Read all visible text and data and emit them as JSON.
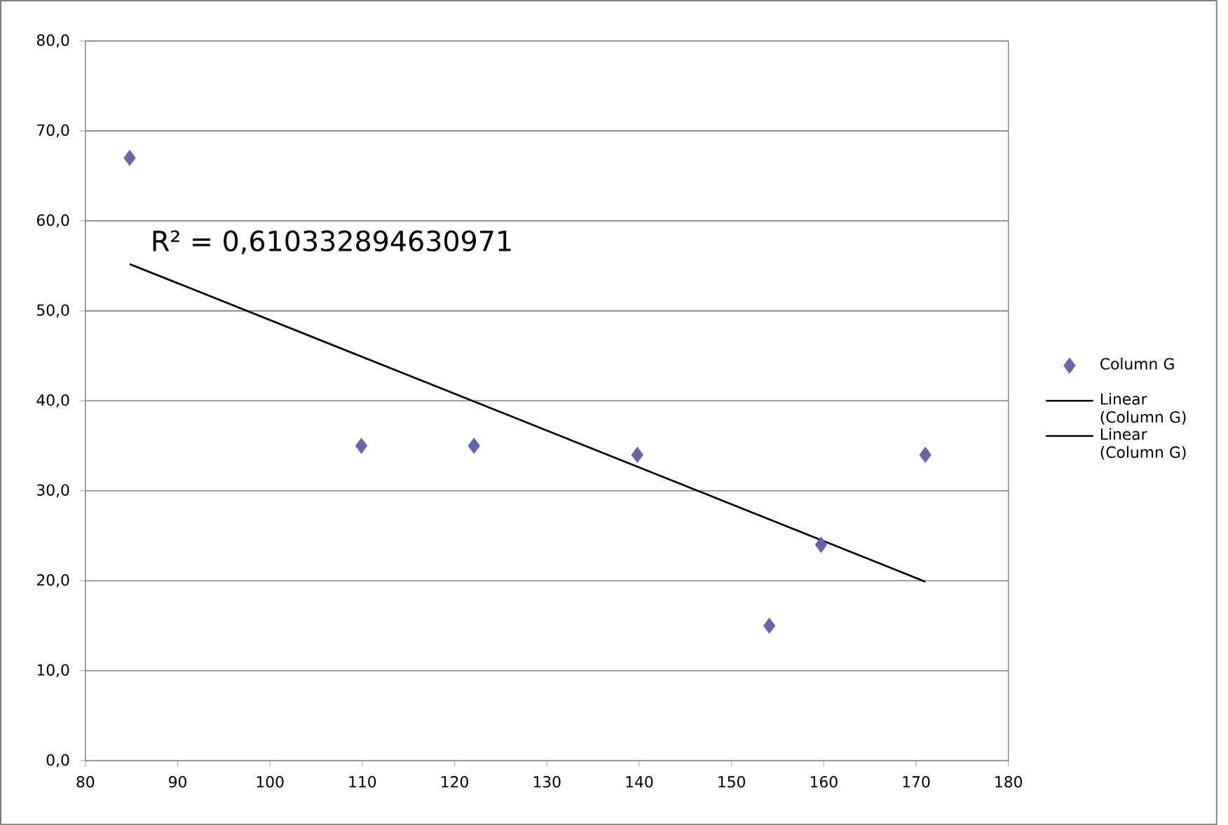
{
  "chart_data": {
    "type": "scatter",
    "annotations": [
      "R² = 0,610332894630971"
    ],
    "series": [
      {
        "name": "Column G",
        "color": "#6666aa",
        "marker": "diamond",
        "x": [
          84.8,
          109.9,
          122.1,
          139.8,
          154.1,
          159.7,
          171.0
        ],
        "values": [
          67,
          35,
          35,
          34,
          15,
          24,
          34
        ]
      },
      {
        "name": "Linear (Column G)",
        "type": "line",
        "color": "#000000",
        "marker": "none",
        "x": [
          84.8,
          171.0
        ],
        "values": [
          55.2,
          19.9
        ]
      },
      {
        "name": "Linear (Column G)",
        "type": "line",
        "color": "#000000",
        "marker": "none",
        "x": [
          84.8,
          171.0
        ],
        "values": [
          55.2,
          19.9
        ]
      }
    ],
    "xlim": [
      80,
      180
    ],
    "xticks": [
      80,
      90,
      100,
      110,
      120,
      130,
      140,
      150,
      160,
      170,
      180
    ],
    "ylim": [
      0,
      80
    ],
    "yticks": [
      {
        "value": 0,
        "label": "0,0"
      },
      {
        "value": 10,
        "label": "10,0"
      },
      {
        "value": 20,
        "label": "20,0"
      },
      {
        "value": 30,
        "label": "30,0"
      },
      {
        "value": 40,
        "label": "40,0"
      },
      {
        "value": 50,
        "label": "50,0"
      },
      {
        "value": 60,
        "label": "60,0"
      },
      {
        "value": 70,
        "label": "70,0"
      },
      {
        "value": 80,
        "label": "80,0"
      }
    ],
    "grid": "y",
    "legend": "right"
  }
}
